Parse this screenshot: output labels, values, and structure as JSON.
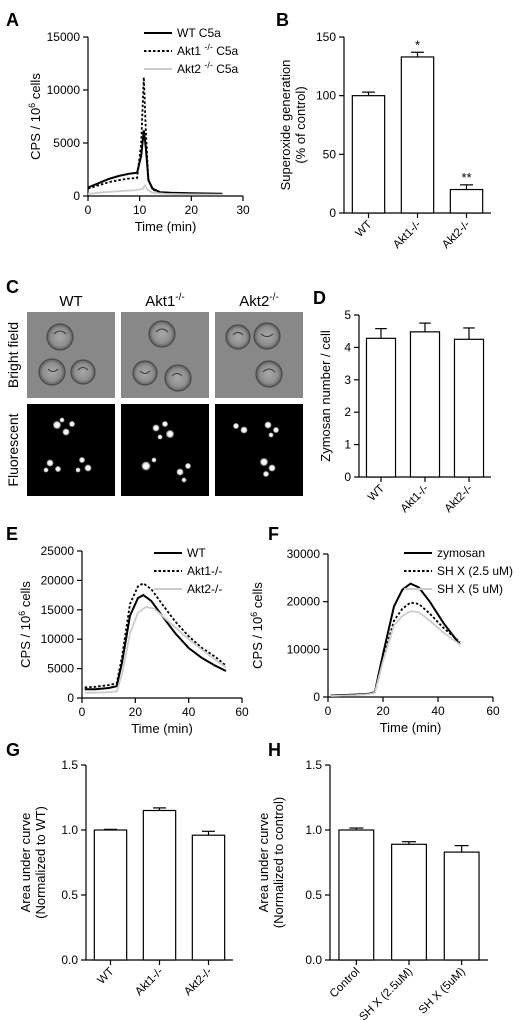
{
  "figure": {
    "micrograph": {
      "letter": "C",
      "columns": [
        "WT",
        "Akt1",
        "Akt2"
      ],
      "column_superscript": "-/-",
      "rows": [
        "Bright field",
        "Fluorescent"
      ]
    }
  },
  "colors": {
    "wt": "#000000",
    "akt1": "#000000",
    "akt2": "#cccccc"
  },
  "chart_data": [
    {
      "panel": "A",
      "type": "line",
      "ylabel": "CPS / 10^6 cells",
      "xlabel": "Time (min)",
      "xlim": [
        0,
        30
      ],
      "ylim": [
        0,
        15000
      ],
      "xticks": [
        0,
        10,
        20,
        30
      ],
      "yticks": [
        0,
        5000,
        10000,
        15000
      ],
      "legend_position": "top-right",
      "series": [
        {
          "name": "WT C5a",
          "style": "solid",
          "x": [
            0,
            2,
            4,
            6,
            8,
            9.5,
            10.3,
            10.8,
            11.2,
            11.7,
            12.5,
            14,
            16,
            20,
            26
          ],
          "y": [
            800,
            1200,
            1600,
            1900,
            2100,
            2200,
            3800,
            6200,
            4500,
            1500,
            700,
            350,
            300,
            250,
            220
          ]
        },
        {
          "name": "Akt1 -/- C5a",
          "style": "dotted",
          "x": [
            0,
            2,
            4,
            6,
            8,
            9.5,
            10.3,
            10.8,
            11.2,
            11.7,
            12.5,
            14,
            16,
            20,
            26
          ],
          "y": [
            700,
            1000,
            1300,
            1500,
            1650,
            1700,
            5000,
            11200,
            6000,
            1500,
            600,
            330,
            280,
            230,
            200
          ]
        },
        {
          "name": "Akt2 -/- C5a",
          "style": "solid-light",
          "x": [
            0,
            3,
            6,
            9,
            10.5,
            11,
            11.5,
            12.5,
            15,
            20,
            26
          ],
          "y": [
            200,
            350,
            450,
            550,
            650,
            1000,
            600,
            300,
            200,
            150,
            130
          ]
        }
      ]
    },
    {
      "panel": "B",
      "type": "bar",
      "ylabel": "Superoxide generation (% of control)",
      "ylim": [
        0,
        150
      ],
      "yticks": [
        0,
        50,
        100,
        150
      ],
      "categories": [
        "WT",
        "Akt1-/-",
        "Akt2-/-"
      ],
      "values": [
        100,
        133,
        20
      ],
      "errors": [
        3,
        4,
        4
      ],
      "annotations": [
        "",
        "*",
        "**"
      ]
    },
    {
      "panel": "D",
      "type": "bar",
      "ylabel": "Zymosan number / cell",
      "ylim": [
        0,
        5
      ],
      "yticks": [
        0,
        1,
        2,
        3,
        4,
        5
      ],
      "categories": [
        "WT",
        "Akt1-/-",
        "Akt2-/-"
      ],
      "values": [
        4.28,
        4.48,
        4.25
      ],
      "errors": [
        0.3,
        0.27,
        0.35
      ]
    },
    {
      "panel": "E",
      "type": "line",
      "ylabel": "CPS / 10^6 cells",
      "xlabel": "Time (min)",
      "xlim": [
        0,
        60
      ],
      "ylim": [
        0,
        25000
      ],
      "xticks": [
        0,
        20,
        40,
        60
      ],
      "yticks": [
        0,
        5000,
        10000,
        15000,
        20000,
        25000
      ],
      "legend_position": "top-right",
      "series": [
        {
          "name": "WT",
          "style": "solid",
          "x": [
            1,
            5,
            10,
            13,
            15,
            18,
            21,
            23,
            26,
            30,
            35,
            40,
            45,
            50,
            54
          ],
          "y": [
            1500,
            1500,
            1700,
            2000,
            6000,
            14000,
            17000,
            17500,
            16500,
            14000,
            11000,
            8500,
            6800,
            5500,
            4600
          ]
        },
        {
          "name": "Akt1-/-",
          "style": "dotted",
          "x": [
            1,
            5,
            10,
            13,
            15,
            18,
            21,
            23,
            26,
            30,
            35,
            40,
            45,
            50,
            54
          ],
          "y": [
            1800,
            1900,
            2200,
            2500,
            7000,
            16000,
            19000,
            19500,
            18500,
            16000,
            13000,
            10500,
            8500,
            7000,
            5500
          ]
        },
        {
          "name": "Akt2-/-",
          "style": "solid-light",
          "x": [
            1,
            5,
            10,
            13,
            15,
            18,
            21,
            24,
            27,
            30,
            35,
            40,
            45,
            50,
            54
          ],
          "y": [
            900,
            900,
            1000,
            1100,
            4000,
            11000,
            14500,
            15500,
            15200,
            14000,
            12000,
            10000,
            8200,
            6500,
            5200
          ]
        }
      ]
    },
    {
      "panel": "F",
      "type": "line",
      "ylabel": "CPS / 10^6 cells",
      "xlabel": "Time (min)",
      "xlim": [
        0,
        60
      ],
      "ylim": [
        0,
        30000
      ],
      "xticks": [
        0,
        20,
        40,
        60
      ],
      "yticks": [
        0,
        10000,
        20000,
        30000
      ],
      "legend_position": "top-right",
      "series": [
        {
          "name": "zymosan",
          "style": "solid",
          "x": [
            1,
            5,
            10,
            15,
            17,
            20,
            24,
            27,
            30,
            33,
            37,
            42,
            48
          ],
          "y": [
            300,
            400,
            500,
            700,
            1000,
            9000,
            19000,
            22500,
            23800,
            23000,
            20000,
            15500,
            11000
          ]
        },
        {
          "name": "SH X (2.5 uM)",
          "style": "dotted",
          "x": [
            1,
            5,
            10,
            15,
            17,
            20,
            24,
            27,
            30,
            33,
            37,
            42,
            48
          ],
          "y": [
            300,
            400,
            500,
            700,
            1000,
            8000,
            16000,
            18500,
            19800,
            19500,
            17500,
            14500,
            11500
          ]
        },
        {
          "name": "SH X (5 uM)",
          "style": "solid-light",
          "x": [
            1,
            5,
            10,
            15,
            17,
            20,
            24,
            27,
            30,
            33,
            37,
            42,
            48
          ],
          "y": [
            200,
            300,
            400,
            600,
            900,
            7500,
            15000,
            17000,
            18000,
            17800,
            16000,
            13500,
            11000
          ]
        }
      ]
    },
    {
      "panel": "G",
      "type": "bar",
      "ylabel": "Area under curve (Normalized to WT)",
      "ylim": [
        0,
        1.5
      ],
      "yticks": [
        "0.0",
        "0.5",
        "1.0",
        "1.5"
      ],
      "categories": [
        "WT",
        "Akt1-/-",
        "Akt2-/-"
      ],
      "values": [
        1.0,
        1.15,
        0.96
      ],
      "errors": [
        0.005,
        0.02,
        0.03
      ]
    },
    {
      "panel": "H",
      "type": "bar",
      "ylabel": "Area under curve (Normalized to control)",
      "ylim": [
        0,
        1.5
      ],
      "yticks": [
        "0.0",
        "0.5",
        "1.0",
        "1.5"
      ],
      "categories": [
        "Control",
        "SH X (2.5uM)",
        "SH X (5uM)"
      ],
      "values": [
        1.0,
        0.89,
        0.83
      ],
      "errors": [
        0.015,
        0.02,
        0.05
      ]
    }
  ]
}
